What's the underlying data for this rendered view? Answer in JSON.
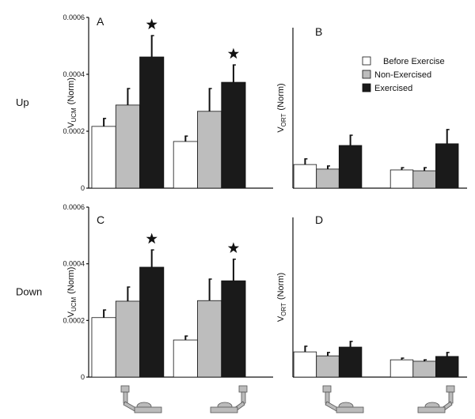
{
  "chart_data": [
    {
      "type": "bar",
      "panel": "A",
      "row_label": "Up",
      "ylabel": "V",
      "ylabel_sub": "UCM",
      "ylabel_unit": "(Norm)",
      "categories": [
        null,
        null
      ],
      "ylim": [
        0,
        0.0006
      ],
      "yticks": [
        0,
        0.0002,
        0.0004,
        0.0006
      ],
      "series": [
        {
          "name": "Before Exercise",
          "color": "#ffffff",
          "values": [
            0.000217,
            0.000164
          ],
          "errors": [
            2.8e-05,
            1.9e-05
          ]
        },
        {
          "name": "Non-Exercised",
          "color": "#bdbdbd",
          "values": [
            0.000292,
            0.00027
          ],
          "errors": [
            5.8e-05,
            8e-05
          ]
        },
        {
          "name": "Exercised",
          "color": "#1a1a1a",
          "values": [
            0.000461,
            0.000372
          ],
          "errors": [
            7.5e-05,
            6.1e-05
          ],
          "significant": true
        }
      ]
    },
    {
      "type": "bar",
      "panel": "B",
      "ylabel": "V",
      "ylabel_sub": "ORT",
      "ylabel_unit": "(Norm)",
      "legend": true,
      "categories": [
        null,
        null
      ],
      "ylim": [
        0,
        0.0006
      ],
      "series": [
        {
          "name": "Before Exercise",
          "color": "#ffffff",
          "values": [
            8.3e-05,
            6.4e-05
          ],
          "errors": [
            2e-05,
            8e-06
          ]
        },
        {
          "name": "Non-Exercised",
          "color": "#bdbdbd",
          "values": [
            6.7e-05,
            6.1e-05
          ],
          "errors": [
            1.1e-05,
            1.1e-05
          ]
        },
        {
          "name": "Exercised",
          "color": "#1a1a1a",
          "values": [
            0.00015,
            0.000156
          ],
          "errors": [
            3.6e-05,
            5e-05
          ]
        }
      ]
    },
    {
      "type": "bar",
      "panel": "C",
      "row_label": "Down",
      "ylabel": "V",
      "ylabel_sub": "UCM",
      "ylabel_unit": "(Norm)",
      "categories": [
        null,
        null
      ],
      "ylim": [
        0,
        0.0006
      ],
      "yticks": [
        0,
        0.0002,
        0.0004,
        0.0006
      ],
      "series": [
        {
          "name": "Before Exercise",
          "color": "#ffffff",
          "values": [
            0.00021,
            0.000131
          ],
          "errors": [
            2.7e-05,
            1.4e-05
          ]
        },
        {
          "name": "Non-Exercised",
          "color": "#bdbdbd",
          "values": [
            0.000268,
            0.00027
          ],
          "errors": [
            5e-05,
            7.6e-05
          ]
        },
        {
          "name": "Exercised",
          "color": "#1a1a1a",
          "values": [
            0.000388,
            0.00034
          ],
          "errors": [
            6.1e-05,
            7.6e-05
          ],
          "significant": true
        }
      ]
    },
    {
      "type": "bar",
      "panel": "D",
      "ylabel": "V",
      "ylabel_sub": "ORT",
      "ylabel_unit": "(Norm)",
      "categories": [
        null,
        null
      ],
      "ylim": [
        0,
        0.0006
      ],
      "series": [
        {
          "name": "Before Exercise",
          "color": "#ffffff",
          "values": [
            8.9e-05,
            6.1e-05
          ],
          "errors": [
            2e-05,
            6e-06
          ]
        },
        {
          "name": "Non-Exercised",
          "color": "#bdbdbd",
          "values": [
            7.5e-05,
            5.6e-05
          ],
          "errors": [
            1.2e-05,
            5e-06
          ]
        },
        {
          "name": "Exercised",
          "color": "#1a1a1a",
          "values": [
            0.000106,
            7.3e-05
          ],
          "errors": [
            2e-05,
            1.4e-05
          ]
        }
      ]
    }
  ]
}
